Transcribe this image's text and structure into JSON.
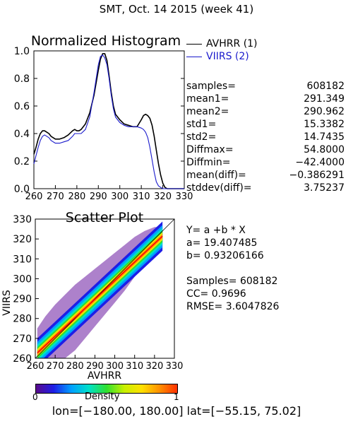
{
  "header": {
    "title": "SMT,  Oct. 14 2015 (week 41)"
  },
  "footer": {
    "lon_label": "lon=",
    "lon_range": "[−180.00, 180.00]",
    "lat_label": "lat=",
    "lat_range": "[−55.15, 75.02]"
  },
  "stats": [
    {
      "label": "samples=",
      "value": "608182"
    },
    {
      "label": "mean1=",
      "value": "291.349"
    },
    {
      "label": "mean2=",
      "value": "290.962"
    },
    {
      "label": "std1=",
      "value": "15.3382"
    },
    {
      "label": "std2=",
      "value": "14.7435"
    },
    {
      "label": "Diffmax=",
      "value": "54.8000"
    },
    {
      "label": "Diffmin=",
      "value": "−42.4000"
    },
    {
      "label": "mean(diff)=",
      "value": "−0.386291"
    },
    {
      "label": "stddev(diff)=",
      "value": "3.75237"
    }
  ],
  "fit": {
    "equation": "Y= a +b * X",
    "a_text": "a= 19.407485",
    "b_text": "b= 0.93206166",
    "samples_text": "Samples= 608182",
    "cc_text": "CC=  0.9696",
    "rmse_text": "RMSE= 3.6047826"
  },
  "colors": {
    "avhrr": "#000000",
    "viirs": "#1a1acc",
    "fit_line": "#ff0000",
    "one_to_one": "#000000"
  },
  "colorbar": {
    "label": "Density",
    "min_label": "0",
    "max_label": "1",
    "stops": [
      "#5a0a8c",
      "#1e1ee6",
      "#00a0ff",
      "#00e0c8",
      "#30e030",
      "#c8f000",
      "#ffe000",
      "#ff9000",
      "#ff3000"
    ]
  },
  "chart_data": [
    {
      "type": "line",
      "title": "Normalized Histogram",
      "xlim": [
        260,
        330
      ],
      "ylim": [
        0,
        1.0
      ],
      "xticks": [
        260,
        270,
        280,
        290,
        300,
        310,
        320,
        330
      ],
      "yticks": [
        0.0,
        0.2,
        0.4,
        0.6,
        0.8,
        1.0
      ],
      "ytick_labels": [
        "0.0",
        "0.2",
        "0.4",
        "0.6",
        "0.8",
        "1.0"
      ],
      "legend_placement": "right",
      "series": [
        {
          "name": "AVHRR (1)",
          "x": [
            260,
            261,
            262,
            263,
            264,
            265,
            266,
            267,
            268,
            270,
            272,
            274,
            276,
            278,
            279,
            280,
            281,
            282,
            284,
            286,
            288,
            290,
            291,
            292,
            293,
            294,
            295,
            296,
            297,
            298,
            300,
            302,
            304,
            306,
            308,
            310,
            311,
            312,
            313,
            314,
            315,
            316,
            317,
            318,
            319,
            320,
            321,
            322,
            324,
            326,
            328,
            330
          ],
          "y": [
            0.25,
            0.3,
            0.36,
            0.4,
            0.42,
            0.42,
            0.41,
            0.4,
            0.38,
            0.36,
            0.36,
            0.37,
            0.39,
            0.42,
            0.43,
            0.42,
            0.42,
            0.43,
            0.47,
            0.55,
            0.68,
            0.86,
            0.94,
            0.98,
            0.98,
            0.93,
            0.82,
            0.7,
            0.6,
            0.54,
            0.5,
            0.47,
            0.46,
            0.45,
            0.45,
            0.5,
            0.53,
            0.54,
            0.53,
            0.51,
            0.46,
            0.38,
            0.28,
            0.18,
            0.1,
            0.04,
            0.01,
            0.0,
            0.0,
            0.0,
            0.0,
            0.0
          ]
        },
        {
          "name": "VIIRS (2)",
          "x": [
            260,
            261,
            262,
            263,
            264,
            265,
            266,
            267,
            268,
            270,
            272,
            274,
            276,
            278,
            279,
            280,
            281,
            282,
            284,
            286,
            288,
            290,
            291,
            292,
            293,
            294,
            295,
            296,
            297,
            298,
            300,
            302,
            304,
            306,
            308,
            310,
            311,
            312,
            313,
            314,
            315,
            316,
            317,
            318,
            319,
            320,
            321,
            322,
            324,
            326,
            328,
            330
          ],
          "y": [
            0.18,
            0.24,
            0.3,
            0.35,
            0.38,
            0.39,
            0.38,
            0.37,
            0.35,
            0.33,
            0.33,
            0.34,
            0.35,
            0.38,
            0.4,
            0.4,
            0.4,
            0.4,
            0.43,
            0.52,
            0.7,
            0.9,
            0.96,
            0.97,
            0.95,
            0.9,
            0.8,
            0.68,
            0.58,
            0.52,
            0.48,
            0.46,
            0.45,
            0.45,
            0.45,
            0.44,
            0.43,
            0.41,
            0.37,
            0.3,
            0.21,
            0.12,
            0.05,
            0.02,
            0.01,
            0.0,
            0.0,
            0.0,
            0.0,
            0.0,
            0.0,
            0.0
          ]
        }
      ]
    },
    {
      "type": "scatter",
      "title": "Scatter Plot",
      "xlabel": "AVHRR",
      "ylabel": "VIIRS",
      "xlim": [
        260,
        330
      ],
      "ylim": [
        260,
        330
      ],
      "xticks": [
        260,
        270,
        280,
        290,
        300,
        310,
        320,
        330
      ],
      "yticks": [
        260,
        270,
        280,
        290,
        300,
        310,
        320,
        330
      ],
      "fit": {
        "a": 19.407485,
        "b": 0.93206166
      },
      "density_envelope": {
        "x": [
          261,
          265,
          270,
          275,
          280,
          285,
          290,
          295,
          300,
          305,
          310,
          315,
          320,
          324
        ],
        "y_min": [
          260,
          260,
          260,
          260,
          264,
          270,
          276,
          282,
          288,
          294,
          301,
          307,
          313,
          318
        ],
        "y_max": [
          275,
          281,
          287,
          292,
          297,
          301,
          305,
          309,
          313,
          317,
          321,
          324,
          326,
          326
        ]
      },
      "core_halfwidth": 3.5
    }
  ]
}
